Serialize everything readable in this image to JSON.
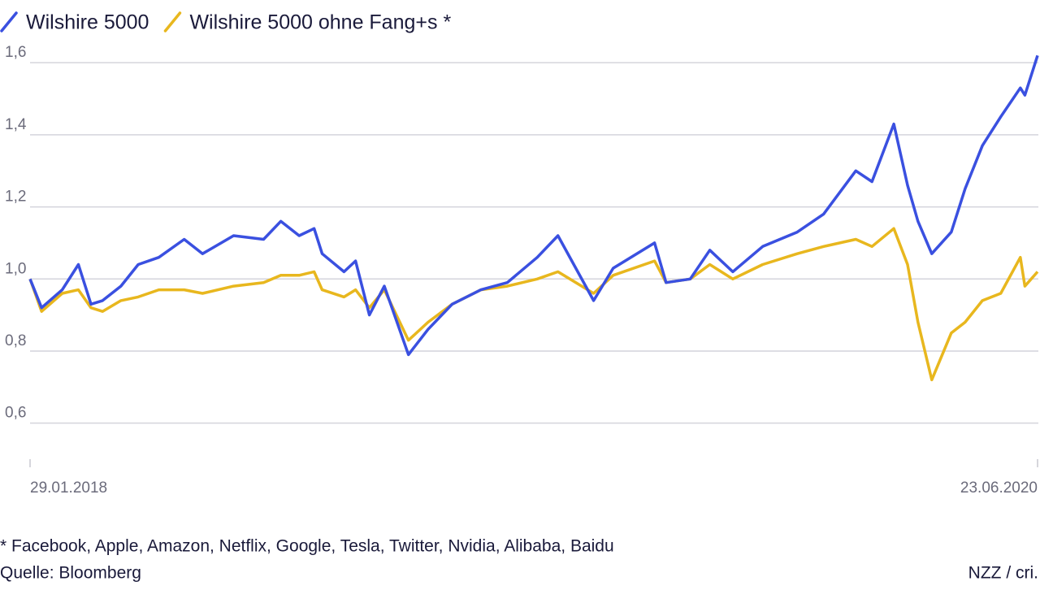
{
  "chart_data": {
    "type": "line",
    "x": [
      "2018-01-29",
      "2018-02-08",
      "2018-02-26",
      "2018-03-12",
      "2018-03-23",
      "2018-04-02",
      "2018-04-18",
      "2018-05-03",
      "2018-05-21",
      "2018-06-12",
      "2018-06-28",
      "2018-07-25",
      "2018-08-20",
      "2018-09-04",
      "2018-09-20",
      "2018-10-03",
      "2018-10-10",
      "2018-10-29",
      "2018-11-08",
      "2018-11-20",
      "2018-12-03",
      "2018-12-24",
      "2019-01-10",
      "2019-01-31",
      "2019-02-25",
      "2019-03-20",
      "2019-04-15",
      "2019-05-03",
      "2019-06-03",
      "2019-06-20",
      "2019-07-26",
      "2019-08-05",
      "2019-08-26",
      "2019-09-12",
      "2019-10-02",
      "2019-10-28",
      "2019-11-27",
      "2019-12-20",
      "2020-01-17",
      "2020-01-31",
      "2020-02-19",
      "2020-03-02",
      "2020-03-11",
      "2020-03-23",
      "2020-04-09",
      "2020-04-21",
      "2020-05-06",
      "2020-05-22",
      "2020-06-08",
      "2020-06-12",
      "2020-06-23"
    ],
    "series": [
      {
        "name": "Wilshire 5000",
        "color": "#3a50e0",
        "values": [
          1.0,
          0.92,
          0.97,
          1.04,
          0.93,
          0.94,
          0.98,
          1.04,
          1.06,
          1.11,
          1.07,
          1.12,
          1.11,
          1.16,
          1.12,
          1.14,
          1.07,
          1.02,
          1.05,
          0.9,
          0.98,
          0.79,
          0.86,
          0.93,
          0.97,
          0.99,
          1.06,
          1.12,
          0.94,
          1.03,
          1.1,
          0.99,
          1.0,
          1.08,
          1.02,
          1.09,
          1.13,
          1.18,
          1.3,
          1.27,
          1.43,
          1.26,
          1.16,
          1.07,
          1.13,
          1.25,
          1.37,
          1.45,
          1.53,
          1.51,
          1.62
        ]
      },
      {
        "name": "Wilshire 5000 ohne Fang+s *",
        "color": "#e8b71e",
        "values": [
          1.0,
          0.91,
          0.96,
          0.97,
          0.92,
          0.91,
          0.94,
          0.95,
          0.97,
          0.97,
          0.96,
          0.98,
          0.99,
          1.01,
          1.01,
          1.02,
          0.97,
          0.95,
          0.97,
          0.92,
          0.97,
          0.83,
          0.88,
          0.93,
          0.97,
          0.98,
          1.0,
          1.02,
          0.96,
          1.01,
          1.05,
          0.99,
          1.0,
          1.04,
          1.0,
          1.04,
          1.07,
          1.09,
          1.11,
          1.09,
          1.14,
          1.04,
          0.88,
          0.72,
          0.85,
          0.88,
          0.94,
          0.96,
          1.06,
          0.98,
          1.02
        ]
      }
    ],
    "ylim": [
      0.5,
      1.65
    ],
    "yticks": [
      {
        "value": 0.6,
        "label": "0,6"
      },
      {
        "value": 0.8,
        "label": "0,8"
      },
      {
        "value": 1.0,
        "label": "1,0"
      },
      {
        "value": 1.2,
        "label": "1,2"
      },
      {
        "value": 1.4,
        "label": "1,4"
      },
      {
        "value": 1.6,
        "label": "1,6"
      }
    ],
    "xlim": [
      "2018-01-29",
      "2020-06-23"
    ],
    "xticks": [
      {
        "value": "2018-01-29",
        "label": "29.01.2018"
      },
      {
        "value": "2020-06-23",
        "label": "23.06.2020"
      }
    ],
    "grid": true,
    "footnote": "* Facebook, Apple, Amazon, Netflix, Google, Tesla, Twitter, Nvidia, Alibaba, Baidu",
    "source": "Quelle: Bloomberg",
    "credit": "NZZ / cri."
  }
}
